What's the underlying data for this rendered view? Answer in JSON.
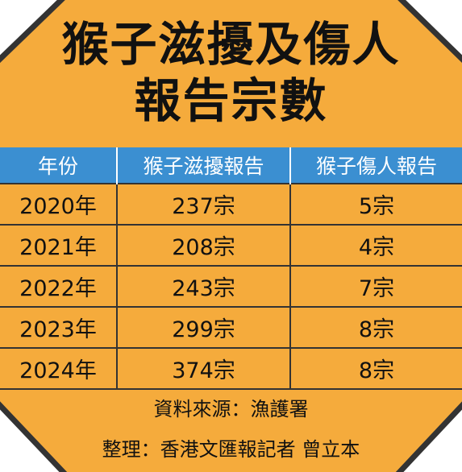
{
  "title": {
    "lines": [
      "猴子滋擾及傷人",
      "報告宗數"
    ]
  },
  "table": {
    "header": [
      "年份",
      "猴子滋擾報告",
      "猴子傷人報告"
    ],
    "rows": [
      [
        "2020年",
        "237宗",
        "5宗"
      ],
      [
        "2021年",
        "208宗",
        "4宗"
      ],
      [
        "2022年",
        "243宗",
        "7宗"
      ],
      [
        "2023年",
        "299宗",
        "8宗"
      ],
      [
        "2024年",
        "374宗",
        "8宗"
      ]
    ]
  },
  "footer": {
    "source": "資料來源：漁護署",
    "credit": "整理：香港文匯報記者 曾立本"
  }
}
